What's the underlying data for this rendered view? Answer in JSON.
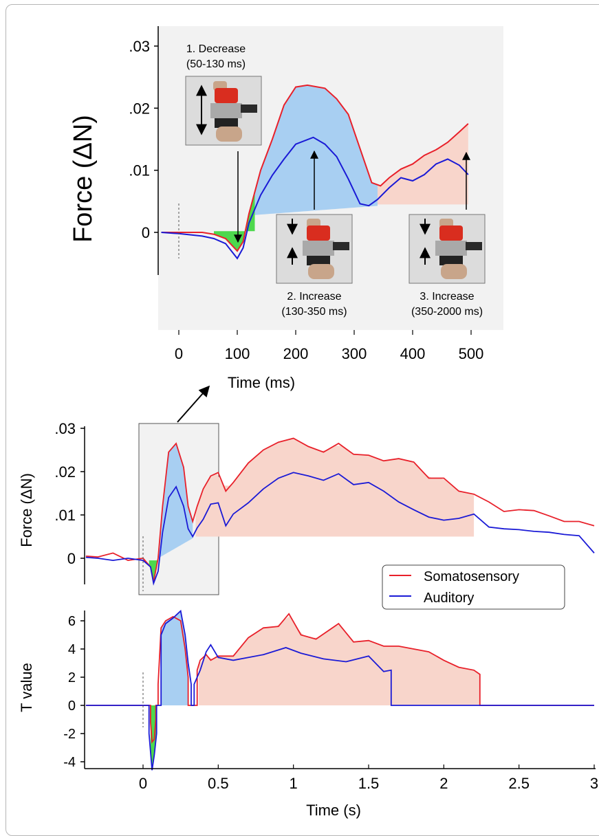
{
  "chart_data": [
    {
      "panel": "inset",
      "type": "line",
      "xlabel": "Time (ms)",
      "ylabel": "Force (ΔN)",
      "xlim": [
        -35,
        520
      ],
      "ylim": [
        -0.013,
        0.033
      ],
      "xticks": [
        "0",
        "100",
        "200",
        "300",
        "400",
        "500"
      ],
      "yticks": [
        ".03",
        ".02",
        ".01",
        "0"
      ],
      "series": [
        {
          "name": "Somatosensory",
          "color": "#e8202a",
          "x": [
            -30,
            0,
            40,
            60,
            80,
            90,
            100,
            110,
            120,
            140,
            160,
            180,
            200,
            220,
            250,
            270,
            290,
            310,
            330,
            345,
            360,
            380,
            400,
            420,
            440,
            460,
            480,
            495
          ],
          "y": [
            0,
            0,
            0,
            -0.0003,
            -0.001,
            -0.002,
            -0.003,
            -0.0015,
            0.003,
            0.01,
            0.015,
            0.0205,
            0.0234,
            0.0237,
            0.0232,
            0.0215,
            0.019,
            0.0135,
            0.008,
            0.0075,
            0.0088,
            0.0102,
            0.011,
            0.0124,
            0.0133,
            0.0145,
            0.0162,
            0.0175
          ]
        },
        {
          "name": "Auditory",
          "color": "#1a1ad6",
          "x": [
            -30,
            0,
            40,
            60,
            80,
            90,
            100,
            110,
            120,
            140,
            160,
            180,
            200,
            230,
            250,
            270,
            290,
            310,
            325,
            340,
            360,
            380,
            400,
            420,
            440,
            460,
            480,
            495
          ],
          "y": [
            0,
            -0.0002,
            -0.0006,
            -0.001,
            -0.0018,
            -0.003,
            -0.0042,
            -0.0025,
            0.0015,
            0.006,
            0.0092,
            0.0118,
            0.0142,
            0.0153,
            0.0142,
            0.0122,
            0.0086,
            0.0046,
            0.0043,
            0.0053,
            0.0072,
            0.0088,
            0.0083,
            0.0093,
            0.011,
            0.0118,
            0.0108,
            0.0093
          ]
        }
      ],
      "windows": [
        {
          "label": "1. Decrease",
          "range": "(50-130 ms)",
          "color": "#4dd84d"
        },
        {
          "label": "2. Increase",
          "range": "(130-350 ms)",
          "color": "#a8cff2"
        },
        {
          "label": "3. Increase",
          "range": "(350-2000 ms)",
          "color": "#f8d5cb"
        }
      ]
    },
    {
      "panel": "force",
      "type": "line",
      "ylabel": "Force (ΔN)",
      "xlim": [
        -0.38,
        3.0
      ],
      "ylim": [
        -0.006,
        0.03
      ],
      "yticks": [
        ".03",
        ".02",
        ".01",
        "0"
      ],
      "series": [
        {
          "name": "Somatosensory",
          "color": "#e8202a",
          "x": [
            -0.38,
            -0.3,
            -0.2,
            -0.1,
            0,
            0.05,
            0.07,
            0.1,
            0.13,
            0.17,
            0.22,
            0.27,
            0.3,
            0.33,
            0.36,
            0.4,
            0.45,
            0.5,
            0.55,
            0.6,
            0.7,
            0.8,
            0.9,
            1.0,
            1.1,
            1.2,
            1.3,
            1.4,
            1.5,
            1.6,
            1.7,
            1.8,
            1.9,
            2.0,
            2.1,
            2.2,
            2.3,
            2.4,
            2.5,
            2.6,
            2.7,
            2.8,
            2.9,
            3.0
          ],
          "y": [
            0.0005,
            0.0003,
            0.0012,
            -0.0005,
            0,
            -0.002,
            -0.0055,
            0.0,
            0.012,
            0.0245,
            0.0265,
            0.021,
            0.012,
            0.0085,
            0.012,
            0.016,
            0.019,
            0.0198,
            0.0155,
            0.0175,
            0.022,
            0.025,
            0.0268,
            0.0277,
            0.0258,
            0.0245,
            0.0265,
            0.024,
            0.0238,
            0.0225,
            0.023,
            0.0222,
            0.0185,
            0.0185,
            0.0155,
            0.0148,
            0.013,
            0.0108,
            0.0112,
            0.011,
            0.0098,
            0.0085,
            0.0085,
            0.0075
          ]
        },
        {
          "name": "Auditory",
          "color": "#1a1ad6",
          "x": [
            -0.38,
            -0.3,
            -0.2,
            -0.1,
            0,
            0.05,
            0.07,
            0.1,
            0.13,
            0.17,
            0.22,
            0.27,
            0.3,
            0.33,
            0.36,
            0.4,
            0.45,
            0.5,
            0.55,
            0.6,
            0.7,
            0.8,
            0.9,
            1.0,
            1.1,
            1.2,
            1.3,
            1.4,
            1.5,
            1.6,
            1.7,
            1.8,
            1.9,
            2.0,
            2.1,
            2.2,
            2.3,
            2.4,
            2.5,
            2.6,
            2.7,
            2.8,
            2.9,
            3.0
          ],
          "y": [
            0.0002,
            0.0,
            -0.0005,
            0.0,
            -0.0005,
            -0.002,
            -0.0058,
            -0.003,
            0.006,
            0.014,
            0.0165,
            0.012,
            0.0068,
            0.005,
            0.007,
            0.009,
            0.0125,
            0.0128,
            0.0075,
            0.0102,
            0.0128,
            0.016,
            0.0185,
            0.0198,
            0.019,
            0.018,
            0.0195,
            0.017,
            0.0175,
            0.0155,
            0.013,
            0.0112,
            0.0095,
            0.0088,
            0.0092,
            0.0102,
            0.0072,
            0.0068,
            0.0066,
            0.0062,
            0.006,
            0.0055,
            0.0052,
            0.0012
          ]
        }
      ]
    },
    {
      "panel": "tvalue",
      "type": "line",
      "xlabel": "Time (s)",
      "ylabel": "T value",
      "xlim": [
        -0.38,
        3.0
      ],
      "ylim": [
        -4.6,
        6.8
      ],
      "xticks": [
        "0",
        "0.5",
        "1",
        "1.5",
        "2",
        "2.5",
        "3"
      ],
      "yticks": [
        "6",
        "4",
        "2",
        "0",
        "-2",
        "-4"
      ],
      "legend": {
        "position": "center-right",
        "entries": [
          "Somatosensory",
          "Auditory"
        ]
      },
      "series": [
        {
          "name": "Somatosensory",
          "color": "#e8202a",
          "x": [
            -0.38,
            0.05,
            0.05,
            0.06,
            0.075,
            0.085,
            0.085,
            0.1,
            0.1,
            0.12,
            0.15,
            0.2,
            0.25,
            0.28,
            0.3,
            0.3,
            0.35,
            0.36,
            0.36,
            0.38,
            0.42,
            0.45,
            0.5,
            0.6,
            0.7,
            0.8,
            0.9,
            0.97,
            1.05,
            1.15,
            1.3,
            1.4,
            1.5,
            1.6,
            1.7,
            1.8,
            1.9,
            2.0,
            2.1,
            2.2,
            2.24,
            2.24,
            3.0
          ],
          "y": [
            0,
            0,
            -1.2,
            -2.6,
            -2.4,
            -1.0,
            0,
            0,
            1.5,
            5.5,
            6.0,
            6.3,
            6.0,
            4.0,
            2.0,
            0,
            0,
            0,
            2.5,
            3.2,
            3.6,
            3.2,
            3.5,
            3.5,
            4.8,
            5.5,
            5.6,
            6.5,
            5.0,
            4.7,
            5.8,
            4.5,
            4.6,
            4.2,
            4.2,
            4.0,
            3.8,
            3.2,
            2.7,
            2.5,
            2.2,
            0,
            0
          ]
        },
        {
          "name": "Auditory",
          "color": "#1a1ad6",
          "x": [
            -0.38,
            0.04,
            0.04,
            0.06,
            0.075,
            0.09,
            0.09,
            0.12,
            0.12,
            0.15,
            0.2,
            0.25,
            0.28,
            0.3,
            0.32,
            0.32,
            0.34,
            0.34,
            0.38,
            0.42,
            0.45,
            0.5,
            0.6,
            0.8,
            0.95,
            1.05,
            1.2,
            1.35,
            1.5,
            1.6,
            1.65,
            1.65,
            3.0
          ],
          "y": [
            0,
            0,
            -2.0,
            -4.6,
            -3.5,
            -2.0,
            0,
            0,
            5.0,
            5.8,
            6.2,
            6.7,
            5.0,
            3.0,
            1.5,
            0,
            0,
            1.5,
            2.5,
            3.8,
            4.3,
            3.4,
            3.2,
            3.6,
            4.1,
            3.7,
            3.3,
            3.1,
            3.5,
            2.4,
            2.5,
            0,
            0
          ]
        }
      ]
    }
  ]
}
